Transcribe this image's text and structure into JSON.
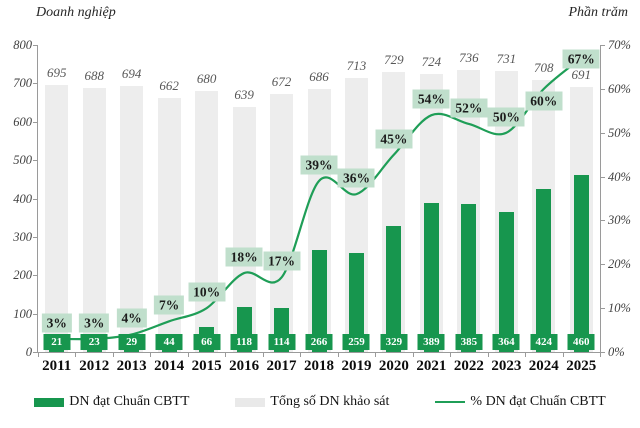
{
  "chart_data": {
    "type": "bar+line combo",
    "categories": [
      "2011",
      "2012",
      "2013",
      "2014",
      "2015",
      "2016",
      "2017",
      "2018",
      "2019",
      "2020",
      "2021",
      "2022",
      "2023",
      "2024",
      "2025"
    ],
    "series": [
      {
        "name": "DN đạt Chuẩn CBTT",
        "type": "bar",
        "axis": "left",
        "color": "#17964e",
        "values": [
          21,
          23,
          29,
          44,
          66,
          118,
          114,
          266,
          259,
          329,
          389,
          385,
          364,
          424,
          460
        ]
      },
      {
        "name": "Tổng số DN khảo sát",
        "type": "bar",
        "axis": "left",
        "color": "#ededed",
        "values": [
          695,
          688,
          694,
          662,
          680,
          639,
          672,
          686,
          713,
          729,
          724,
          736,
          731,
          708,
          691
        ]
      },
      {
        "name": "% DN đạt Chuẩn CBTT",
        "type": "line",
        "axis": "right",
        "color": "#1f9e57",
        "values": [
          3,
          3,
          4,
          7,
          10,
          18,
          17,
          39,
          36,
          45,
          54,
          52,
          50,
          60,
          67
        ],
        "labels": [
          "3%",
          "3%",
          "4%",
          "7%",
          "10%",
          "18%",
          "17%",
          "39%",
          "36%",
          "45%",
          "54%",
          "52%",
          "50%",
          "60%",
          "67%"
        ]
      }
    ],
    "left_axis": {
      "title": "Doanh nghiệp",
      "min": 0,
      "max": 800,
      "step": 100,
      "ticks": [
        "0",
        "100",
        "200",
        "300",
        "400",
        "500",
        "600",
        "700",
        "800"
      ]
    },
    "right_axis": {
      "title": "Phần trăm",
      "min": 0,
      "max": 70,
      "step": 10,
      "ticks": [
        "0%",
        "10%",
        "20%",
        "30%",
        "40%",
        "50%",
        "60%",
        "70%"
      ]
    },
    "legend_position": "bottom",
    "grid": false,
    "pct_label_offsets": {
      "default": -16,
      "13": 12,
      "14": 1
    },
    "pct_label_bg": "#c0dfcc"
  },
  "legend": {
    "items": [
      {
        "label": "DN đạt Chuẩn CBTT",
        "swatch": "bar",
        "color": "#17964e"
      },
      {
        "label": "Tổng số DN khảo sát",
        "swatch": "bar",
        "color": "#e9e9e9"
      },
      {
        "label": "% DN đạt Chuẩn CBTT",
        "swatch": "line",
        "color": "#1f9e57"
      }
    ]
  },
  "colors": {
    "achieved_bar": "#17964e",
    "total_bar": "#ededed",
    "trend_line": "#1f9e57",
    "pct_label_bg": "#c0dfcc",
    "axis": "#9a9a9a"
  }
}
